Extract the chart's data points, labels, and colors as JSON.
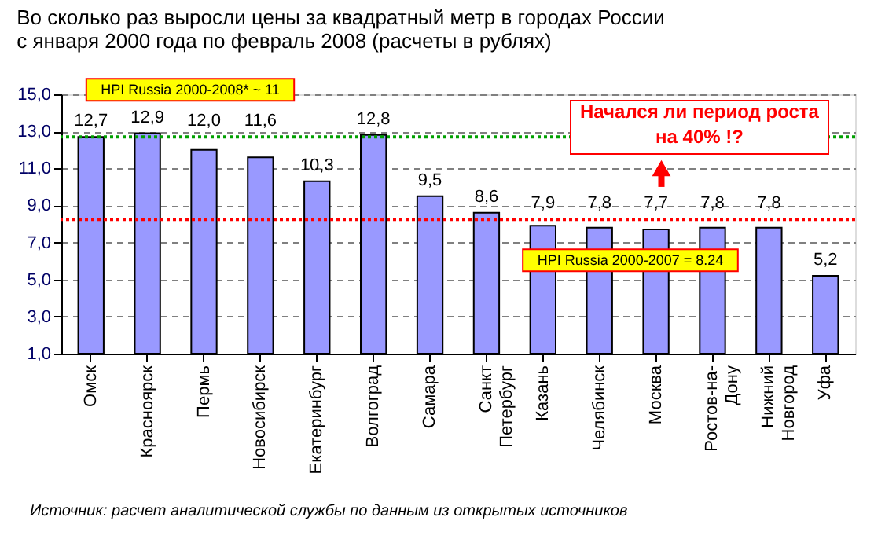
{
  "chart_data": {
    "type": "bar",
    "title": [
      "Во сколько раз выросли цены за квадратный метр в городах России",
      "с января 2000 года по февраль 2008 (расчеты в рублях)"
    ],
    "categories": [
      "Омск",
      "Красноярск",
      "Пермь",
      "Новосибирск",
      "Екатеринбург",
      "Волгоград",
      "Самара",
      "Санкт\nПетербург",
      "Казань",
      "Челябинск",
      "Москва",
      "Ростов-на-\nДону",
      "Нижний\nНовгород",
      "Уфа"
    ],
    "values": [
      12.7,
      12.9,
      12.0,
      11.6,
      10.3,
      12.8,
      9.5,
      8.6,
      7.9,
      7.8,
      7.7,
      7.8,
      7.8,
      5.2
    ],
    "value_labels": [
      "12,7",
      "12,9",
      "12,0",
      "11,6",
      "10,3",
      "12,8",
      "9,5",
      "8,6",
      "7,9",
      "7,8",
      "7,7",
      "7,8",
      "7,8",
      "5,2"
    ],
    "color": "#9999ff",
    "ylim": [
      1,
      15
    ],
    "yticks": [
      {
        "value": 1,
        "label": "1,0"
      },
      {
        "value": 3,
        "label": "3,0"
      },
      {
        "value": 5,
        "label": "5,0"
      },
      {
        "value": 7,
        "label": "7,0"
      },
      {
        "value": 9,
        "label": "9,0"
      },
      {
        "value": 11,
        "label": "11,0"
      },
      {
        "value": 13,
        "label": "13,0"
      },
      {
        "value": 15,
        "label": "15,0"
      }
    ],
    "grid": "y",
    "ref_lines": [
      {
        "axis": "y",
        "value": 12.7,
        "label": "HPI Russia 2000-2008*  ~ 11",
        "color": "#00a000",
        "line_style": "dotted"
      },
      {
        "axis": "y",
        "value": 8.24,
        "label": "HPI Russia 2000-2007  = 8.24",
        "color": "#ff0000",
        "line_style": "dotted"
      }
    ],
    "annotations": [
      "Начался ли период роста\nна 40% !?",
      "Источник: расчет аналитической службы по данным из открытых источников"
    ]
  }
}
